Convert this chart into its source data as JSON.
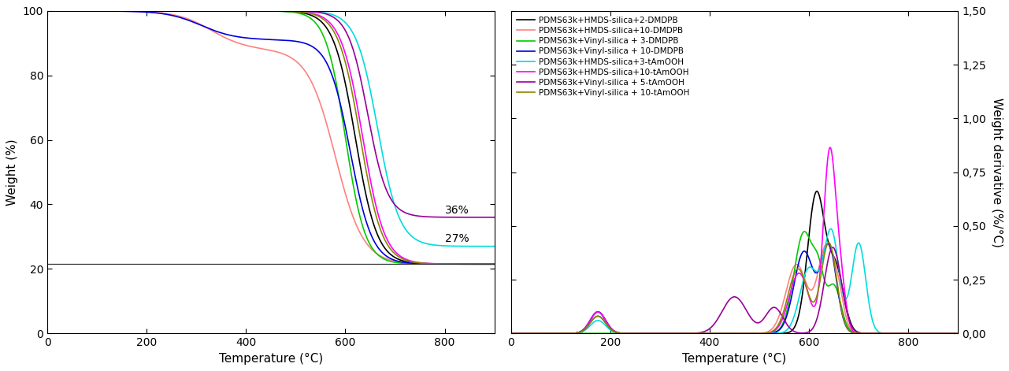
{
  "series": [
    {
      "label": "PDMS63k+HMDS-silica+2-DMDPB",
      "color": "#000000"
    },
    {
      "label": "PDMS63k+HMDS-silica+10-DMDPB",
      "color": "#ff8080"
    },
    {
      "label": "PDMS63k+Vinyl-silica + 3-DMDPB",
      "color": "#00cc00"
    },
    {
      "label": "PDMS63k+Vinyl-silica + 10-DMDPB",
      "color": "#0000dd"
    },
    {
      "label": "PDMS63k+HMDS-silica+3-tAmOOH",
      "color": "#00dddd"
    },
    {
      "label": "PDMS63k+HMDS-silica+10-tAmOOH",
      "color": "#ff00ff"
    },
    {
      "label": "PDMS63k+Vinyl-silica + 5-tAmOOH",
      "color": "#990099"
    },
    {
      "label": "PDMS63k+Vinyl-silica + 10-tAmOOH",
      "color": "#888800"
    }
  ],
  "tg_xlabel": "Temperature (°C)",
  "tg_ylabel": "Weight (%)",
  "dtg_xlabel": "Temperature (°C)",
  "dtg_ylabel": "Weight derivative (%/°C)",
  "tg_xlim": [
    0,
    900
  ],
  "tg_ylim": [
    0,
    100
  ],
  "dtg_xlim": [
    0,
    900
  ],
  "dtg_ylim": [
    0.0,
    1.5
  ],
  "annotation_36": "36%",
  "annotation_27": "27%",
  "hline_y": 21.5,
  "background": "#ffffff"
}
